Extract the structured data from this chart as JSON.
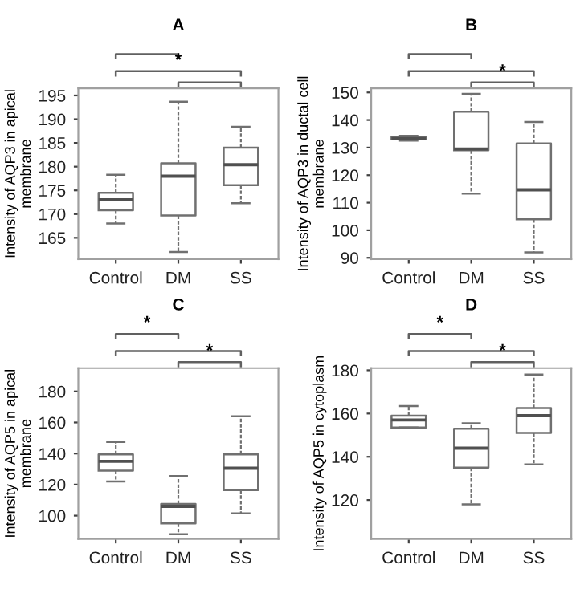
{
  "chart_data": [
    {
      "type": "box",
      "title": "A",
      "ylabel": "Intensity of AQP3 in apical\nmembrane",
      "categories": [
        "Control",
        "DM",
        "SS"
      ],
      "color": "#707070",
      "ylim": [
        160.5,
        196.5
      ],
      "yticks": [
        165,
        170,
        175,
        180,
        185,
        190,
        195
      ],
      "grid": false,
      "boxes": [
        {
          "low": 168,
          "q1": 170.8,
          "median": 173,
          "q3": 174.5,
          "high": 178.3
        },
        {
          "low": 162,
          "q1": 169.7,
          "median": 178,
          "q3": 180.7,
          "high": 193.7
        },
        {
          "low": 172.3,
          "q1": 176.1,
          "median": 180.4,
          "q3": 184,
          "high": 188.4
        }
      ],
      "annotations": [
        "*"
      ]
    },
    {
      "type": "box",
      "title": "B",
      "ylabel": "Intensity of AQP3 in ductal cell\nmembrane",
      "categories": [
        "Control",
        "DM",
        "SS"
      ],
      "color": "#707070",
      "ylim": [
        89.5,
        151.5
      ],
      "yticks": [
        90,
        100,
        110,
        120,
        130,
        140,
        150
      ],
      "grid": false,
      "boxes": [
        {
          "low": 132.5,
          "q1": 133,
          "median": 133.3,
          "q3": 134,
          "high": 134.3
        },
        {
          "low": 113.3,
          "q1": 129,
          "median": 129.5,
          "q3": 143,
          "high": 149.5
        },
        {
          "low": 92,
          "q1": 104,
          "median": 114.7,
          "q3": 131.5,
          "high": 139.3
        }
      ],
      "annotations": [
        "*"
      ]
    },
    {
      "type": "box",
      "title": "C",
      "ylabel": "Intensity of AQP5 in apical\nmembrane",
      "categories": [
        "Control",
        "DM",
        "SS"
      ],
      "color": "#707070",
      "ylim": [
        85,
        195
      ],
      "yticks": [
        100,
        120,
        140,
        160,
        180
      ],
      "grid": false,
      "boxes": [
        {
          "low": 122,
          "q1": 129,
          "median": 135,
          "q3": 139.5,
          "high": 147.5
        },
        {
          "low": 88,
          "q1": 95,
          "median": 106,
          "q3": 107.5,
          "high": 125.5
        },
        {
          "low": 101.5,
          "q1": 116.5,
          "median": 130.5,
          "q3": 139.5,
          "high": 164
        }
      ],
      "annotations": [
        "*",
        "*"
      ]
    },
    {
      "type": "box",
      "title": "D",
      "ylabel": "Intensity of AQP5 in cytoplasm",
      "categories": [
        "Control",
        "DM",
        "SS"
      ],
      "color": "#707070",
      "ylim": [
        102,
        181
      ],
      "yticks": [
        120,
        140,
        160,
        180
      ],
      "grid": false,
      "boxes": [
        {
          "low": 153.5,
          "q1": 153.5,
          "median": 157,
          "q3": 159,
          "high": 163.5
        },
        {
          "low": 118,
          "q1": 135,
          "median": 144,
          "q3": 153,
          "high": 155.5
        },
        {
          "low": 136.5,
          "q1": 151,
          "median": 159,
          "q3": 162.5,
          "high": 178
        }
      ],
      "annotations": [
        "*",
        "*"
      ]
    }
  ]
}
